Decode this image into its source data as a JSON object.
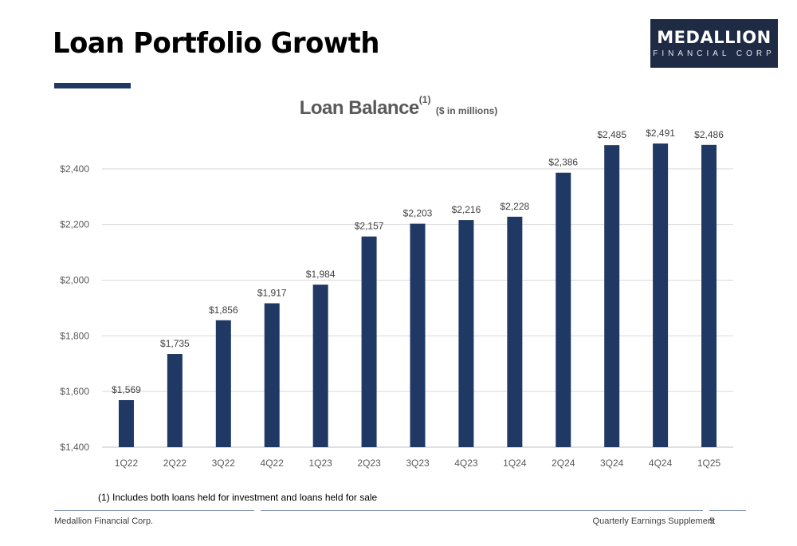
{
  "header": {
    "title": "Loan Portfolio Growth",
    "logo_main": "MEDALLION",
    "logo_sub": "FINANCIAL CORP"
  },
  "chart_title": {
    "main": "Loan Balance",
    "superscript": "(1)",
    "unit": "($ in millions)"
  },
  "chart_data": {
    "type": "bar",
    "title": "Loan Balance",
    "subtitle": "($ in millions)",
    "categories": [
      "1Q22",
      "2Q22",
      "3Q22",
      "4Q22",
      "1Q23",
      "2Q23",
      "3Q23",
      "4Q23",
      "1Q24",
      "2Q24",
      "3Q24",
      "4Q24",
      "1Q25"
    ],
    "values": [
      1569,
      1735,
      1856,
      1917,
      1984,
      2157,
      2203,
      2216,
      2228,
      2386,
      2485,
      2491,
      2486
    ],
    "data_labels": [
      "$1,569",
      "$1,735",
      "$1,856",
      "$1,917",
      "$1,984",
      "$2,157",
      "$2,203",
      "$2,216",
      "$2,228",
      "$2,386",
      "$2,485",
      "$2,491",
      "$2,486"
    ],
    "yticks": [
      1400,
      1600,
      1800,
      2000,
      2200,
      2400
    ],
    "ytick_labels": [
      "$1,400",
      "$1,600",
      "$1,800",
      "$2,000",
      "$2,200",
      "$2,400"
    ],
    "ylim": [
      1400,
      2600
    ],
    "grid": true,
    "bar_color": "#1f3864",
    "xlabel": "",
    "ylabel": ""
  },
  "footnote": "(1) Includes both loans held for investment and loans held for sale",
  "footer": {
    "left": "Medallion Financial Corp.",
    "right": "Quarterly Earnings Supplement",
    "page": "5"
  }
}
